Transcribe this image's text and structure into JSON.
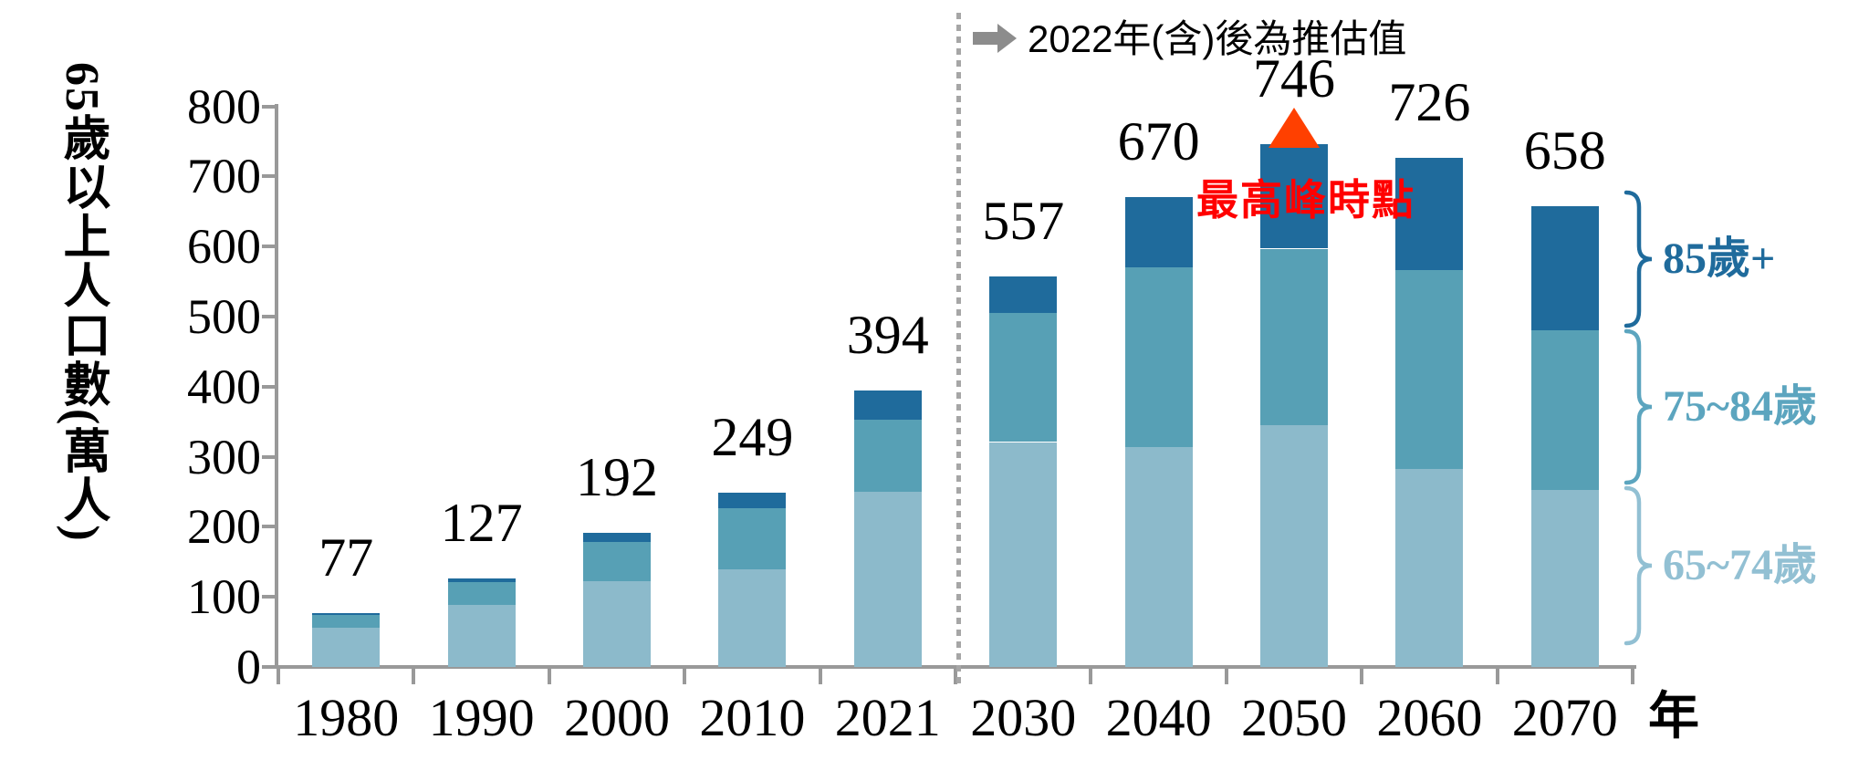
{
  "chart_data": {
    "type": "bar",
    "stacked": true,
    "ylabel": "65歲以上人口數(萬人)",
    "xlabel": "年",
    "ylim": [
      0,
      800
    ],
    "ytick_step": 100,
    "yticks": [
      0,
      100,
      200,
      300,
      400,
      500,
      600,
      700,
      800
    ],
    "categories": [
      "1980",
      "1990",
      "2000",
      "2010",
      "2021",
      "2030",
      "2040",
      "2050",
      "2060",
      "2070"
    ],
    "series": [
      {
        "name": "65~74歲",
        "color": "#8CBACB",
        "label_color": "#92C0D3",
        "values": [
          56,
          89,
          122,
          139,
          250,
          321,
          314,
          345,
          283,
          253
        ]
      },
      {
        "name": "75~84歲",
        "color": "#57A0B5",
        "label_color": "#5CA5BF",
        "values": [
          18,
          32,
          56,
          88,
          103,
          184,
          256,
          252,
          283,
          227
        ]
      },
      {
        "name": "85歲+",
        "color": "#1F6B9C",
        "label_color": "#1F6B9C",
        "values": [
          3,
          6,
          14,
          22,
          41,
          52,
          100,
          149,
          160,
          178
        ]
      }
    ],
    "totals": [
      77,
      127,
      192,
      249,
      394,
      557,
      670,
      746,
      726,
      658
    ],
    "annotations": {
      "estimate_note": "2022年(含)後為推估值",
      "peak_label": "最高峰時點",
      "peak_category": "2050",
      "peak_value": 746
    },
    "legend_position": "right",
    "grid": false
  },
  "colors": {
    "axis": "#999999",
    "dotted_line": "#A6A6A6",
    "arrow": "#8C8C8C",
    "peak_text": "#FF0000",
    "peak_marker": "#FF4000",
    "value_label": "#000000"
  }
}
